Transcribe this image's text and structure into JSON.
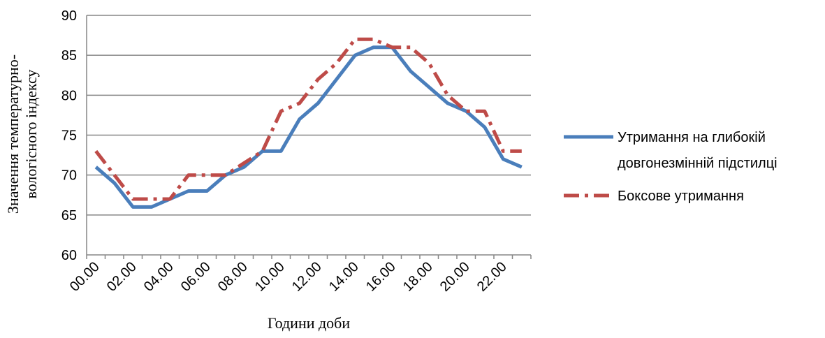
{
  "chart_data": {
    "type": "line",
    "title": "",
    "xlabel": "Години доби",
    "ylabel_line1": "Значення температурно-",
    "ylabel_line2": "вологісного індексу",
    "ylim": [
      60,
      90
    ],
    "yticks": [
      60,
      65,
      70,
      75,
      80,
      85,
      90
    ],
    "grid": "horizontal",
    "legend_position": "right",
    "tick_labels": [
      "00.00",
      "02.00",
      "04.00",
      "06.00",
      "08.00",
      "10.00",
      "12.00",
      "14.00",
      "16.00",
      "18.00",
      "20.00",
      "22.00"
    ],
    "x": [
      "00.00",
      "01.00",
      "02.00",
      "03.00",
      "04.00",
      "05.00",
      "06.00",
      "07.00",
      "08.00",
      "09.00",
      "10.00",
      "11.00",
      "12.00",
      "13.00",
      "14.00",
      "15.00",
      "16.00",
      "17.00",
      "18.00",
      "19.00",
      "20.00",
      "21.00",
      "22.00",
      "23.00"
    ],
    "series": [
      {
        "name": "Утримання на глибокій довгонезмінній підстилці",
        "name_line1": "Утримання на глибокій",
        "name_line2": "довгонезмінній підстилці",
        "color": "#4a7ebb",
        "style": "solid",
        "values": [
          71,
          69,
          66,
          66,
          67,
          68,
          68,
          70,
          71,
          73,
          73,
          77,
          79,
          82,
          85,
          86,
          86,
          83,
          81,
          79,
          78,
          76,
          72,
          71
        ]
      },
      {
        "name": "Боксове утримання",
        "name_line1": "Боксове утримання",
        "name_line2": "",
        "color": "#be4b48",
        "style": "dash-dot",
        "values": [
          73,
          70,
          67,
          67,
          67,
          70,
          70,
          70,
          71.5,
          73,
          78,
          79,
          82,
          84,
          87,
          87,
          86,
          86,
          84,
          80,
          78,
          78,
          73,
          73
        ]
      }
    ]
  }
}
